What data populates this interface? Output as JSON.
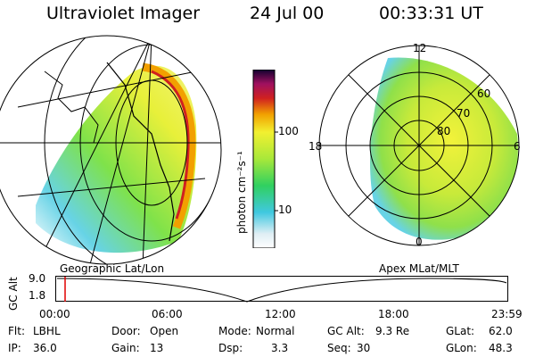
{
  "header": {
    "title": "Ultraviolet Imager",
    "date": "24 Jul 00",
    "time": "00:33:31 UT"
  },
  "geo_panel": {
    "caption": "Geographic Lat/Lon"
  },
  "colorbar": {
    "unit_label": "photon cm⁻²s⁻¹",
    "ticks": [
      "100",
      "10"
    ],
    "scale": "log"
  },
  "polar_panel": {
    "caption": "Apex MLat/MLT",
    "mlt_labels": {
      "top": "12",
      "left": "18",
      "right": "6",
      "bottom": "0"
    },
    "lat_labels": [
      "60",
      "70",
      "80"
    ]
  },
  "timeline": {
    "y_axis_label": "GC Alt",
    "y_ticks": [
      "9.0",
      "1.8"
    ],
    "x_ticks": [
      "00:00",
      "06:00",
      "12:00",
      "18:00",
      "23:59"
    ],
    "current_time_marker": "00:33"
  },
  "info": {
    "row1": [
      {
        "label": "Flt:",
        "value": "LBHL"
      },
      {
        "label": "Door:",
        "value": "Open"
      },
      {
        "label": "Mode:",
        "value": "Normal"
      },
      {
        "label": "GC Alt:",
        "value": "9.3 Re"
      },
      {
        "label": "GLat:",
        "value": "62.0"
      }
    ],
    "row2": [
      {
        "label": "IP:",
        "value": "36.0"
      },
      {
        "label": "Gain:",
        "value": "13"
      },
      {
        "label": "Dsp:",
        "value": "3.3"
      },
      {
        "label": "Seq:",
        "value": "30"
      },
      {
        "label": "GLon:",
        "value": "48.3"
      }
    ]
  },
  "colors": {
    "marker": "#e00000"
  }
}
